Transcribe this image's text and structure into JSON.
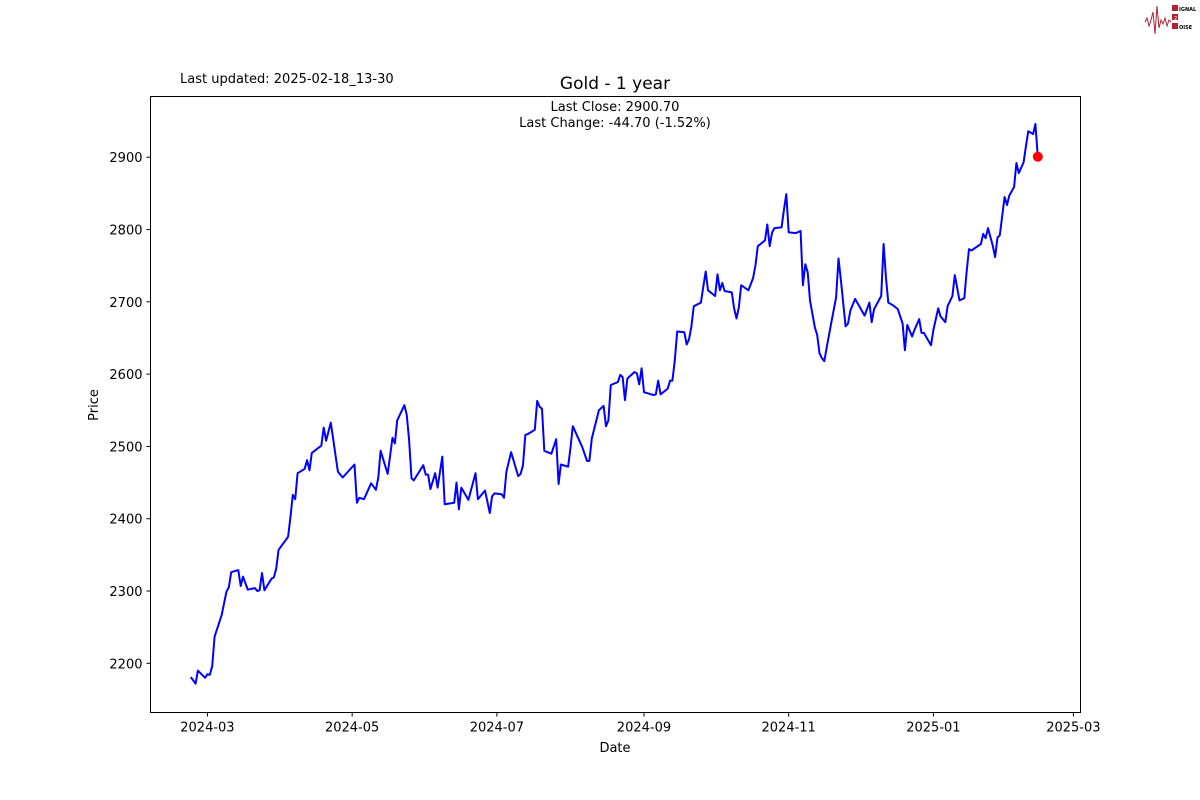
{
  "header": {
    "last_updated": "Last updated: 2025-02-18_13-30"
  },
  "logo": {
    "logo_text": [
      "SIGNAL",
      "2",
      "NOISE"
    ],
    "color": "#b22234"
  },
  "chart_data": {
    "type": "line",
    "title": "Gold - 1 year",
    "annotations": [
      "Last Close: 2900.70",
      "Last Change: -44.70 (-1.52%)"
    ],
    "xlabel": "Date",
    "ylabel": "Price",
    "xlim": [
      "2024-02-06",
      "2025-03-04"
    ],
    "ylim": [
      2132,
      2984
    ],
    "x_ticks": [
      "2024-03",
      "2024-05",
      "2024-07",
      "2024-09",
      "2024-11",
      "2025-01",
      "2025-03"
    ],
    "y_ticks": [
      2200,
      2300,
      2400,
      2500,
      2600,
      2700,
      2800,
      2900
    ],
    "grid": false,
    "line_color": "#0000ff",
    "marker_color": "#ff0000",
    "last_point": [
      "2025-02-14",
      2900.7
    ],
    "points": [
      [
        "2024-02-23",
        2181
      ],
      [
        "2024-02-25",
        2172
      ],
      [
        "2024-02-26",
        2190
      ],
      [
        "2024-02-29",
        2180
      ],
      [
        "2024-03-01",
        2185
      ],
      [
        "2024-03-02",
        2184
      ],
      [
        "2024-03-03",
        2196
      ],
      [
        "2024-03-04",
        2237
      ],
      [
        "2024-03-07",
        2267
      ],
      [
        "2024-03-09",
        2299
      ],
      [
        "2024-03-10",
        2305
      ],
      [
        "2024-03-11",
        2326
      ],
      [
        "2024-03-14",
        2329
      ],
      [
        "2024-03-15",
        2307
      ],
      [
        "2024-03-16",
        2320
      ],
      [
        "2024-03-18",
        2302
      ],
      [
        "2024-03-21",
        2304
      ],
      [
        "2024-03-22",
        2300
      ],
      [
        "2024-03-23",
        2301
      ],
      [
        "2024-03-24",
        2325
      ],
      [
        "2024-03-25",
        2301
      ],
      [
        "2024-03-28",
        2317
      ],
      [
        "2024-03-29",
        2319
      ],
      [
        "2024-03-30",
        2331
      ],
      [
        "2024-03-31",
        2357
      ],
      [
        "2024-04-04",
        2375
      ],
      [
        "2024-04-05",
        2403
      ],
      [
        "2024-04-06",
        2433
      ],
      [
        "2024-04-07",
        2427
      ],
      [
        "2024-04-08",
        2463
      ],
      [
        "2024-04-11",
        2469
      ],
      [
        "2024-04-12",
        2481
      ],
      [
        "2024-04-13",
        2467
      ],
      [
        "2024-04-14",
        2491
      ],
      [
        "2024-04-18",
        2501
      ],
      [
        "2024-04-19",
        2526
      ],
      [
        "2024-04-20",
        2508
      ],
      [
        "2024-04-22",
        2533
      ],
      [
        "2024-04-25",
        2465
      ],
      [
        "2024-04-27",
        2457
      ],
      [
        "2024-05-02",
        2475
      ],
      [
        "2024-05-03",
        2422
      ],
      [
        "2024-05-04",
        2429
      ],
      [
        "2024-05-06",
        2427
      ],
      [
        "2024-05-09",
        2449
      ],
      [
        "2024-05-11",
        2440
      ],
      [
        "2024-05-12",
        2457
      ],
      [
        "2024-05-13",
        2494
      ],
      [
        "2024-05-16",
        2462
      ],
      [
        "2024-05-18",
        2512
      ],
      [
        "2024-05-19",
        2504
      ],
      [
        "2024-05-20",
        2536
      ],
      [
        "2024-05-23",
        2557
      ],
      [
        "2024-05-24",
        2544
      ],
      [
        "2024-05-25",
        2509
      ],
      [
        "2024-05-26",
        2456
      ],
      [
        "2024-05-27",
        2453
      ],
      [
        "2024-05-31",
        2474
      ],
      [
        "2024-06-01",
        2461
      ],
      [
        "2024-06-02",
        2461
      ],
      [
        "2024-06-03",
        2441
      ],
      [
        "2024-06-05",
        2463
      ],
      [
        "2024-06-06",
        2443
      ],
      [
        "2024-06-08",
        2486
      ],
      [
        "2024-06-09",
        2420
      ],
      [
        "2024-06-13",
        2422
      ],
      [
        "2024-06-14",
        2450
      ],
      [
        "2024-06-15",
        2413
      ],
      [
        "2024-06-16",
        2443
      ],
      [
        "2024-06-19",
        2426
      ],
      [
        "2024-06-22",
        2463
      ],
      [
        "2024-06-23",
        2427
      ],
      [
        "2024-06-26",
        2439
      ],
      [
        "2024-06-28",
        2408
      ],
      [
        "2024-06-29",
        2431
      ],
      [
        "2024-06-30",
        2435
      ],
      [
        "2024-07-03",
        2434
      ],
      [
        "2024-07-04",
        2429
      ],
      [
        "2024-07-05",
        2465
      ],
      [
        "2024-07-07",
        2492
      ],
      [
        "2024-07-10",
        2459
      ],
      [
        "2024-07-11",
        2462
      ],
      [
        "2024-07-12",
        2474
      ],
      [
        "2024-07-13",
        2516
      ],
      [
        "2024-07-14",
        2517
      ],
      [
        "2024-07-17",
        2523
      ],
      [
        "2024-07-18",
        2563
      ],
      [
        "2024-07-19",
        2555
      ],
      [
        "2024-07-20",
        2552
      ],
      [
        "2024-07-21",
        2494
      ],
      [
        "2024-07-24",
        2490
      ],
      [
        "2024-07-26",
        2510
      ],
      [
        "2024-07-27",
        2448
      ],
      [
        "2024-07-28",
        2475
      ],
      [
        "2024-07-31",
        2472
      ],
      [
        "2024-08-01",
        2497
      ],
      [
        "2024-08-02",
        2528
      ],
      [
        "2024-08-06",
        2499
      ],
      [
        "2024-08-08",
        2480
      ],
      [
        "2024-08-09",
        2480
      ],
      [
        "2024-08-10",
        2511
      ],
      [
        "2024-08-13",
        2550
      ],
      [
        "2024-08-15",
        2556
      ],
      [
        "2024-08-16",
        2528
      ],
      [
        "2024-08-17",
        2536
      ],
      [
        "2024-08-18",
        2585
      ],
      [
        "2024-08-21",
        2589
      ],
      [
        "2024-08-22",
        2599
      ],
      [
        "2024-08-23",
        2596
      ],
      [
        "2024-08-24",
        2564
      ],
      [
        "2024-08-25",
        2594
      ],
      [
        "2024-08-28",
        2603
      ],
      [
        "2024-08-29",
        2601
      ],
      [
        "2024-08-30",
        2586
      ],
      [
        "2024-08-31",
        2608
      ],
      [
        "2024-09-01",
        2575
      ],
      [
        "2024-09-05",
        2571
      ],
      [
        "2024-09-06",
        2572
      ],
      [
        "2024-09-07",
        2591
      ],
      [
        "2024-09-08",
        2572
      ],
      [
        "2024-09-11",
        2580
      ],
      [
        "2024-09-12",
        2591
      ],
      [
        "2024-09-13",
        2591
      ],
      [
        "2024-09-14",
        2619
      ],
      [
        "2024-09-15",
        2659
      ],
      [
        "2024-09-18",
        2658
      ],
      [
        "2024-09-19",
        2641
      ],
      [
        "2024-09-20",
        2648
      ],
      [
        "2024-09-21",
        2666
      ],
      [
        "2024-09-22",
        2694
      ],
      [
        "2024-09-25",
        2699
      ],
      [
        "2024-09-26",
        2721
      ],
      [
        "2024-09-27",
        2742
      ],
      [
        "2024-09-28",
        2716
      ],
      [
        "2024-10-01",
        2708
      ],
      [
        "2024-10-02",
        2738
      ],
      [
        "2024-10-03",
        2716
      ],
      [
        "2024-10-04",
        2726
      ],
      [
        "2024-10-05",
        2715
      ],
      [
        "2024-10-08",
        2713
      ],
      [
        "2024-10-09",
        2691
      ],
      [
        "2024-10-10",
        2677
      ],
      [
        "2024-10-11",
        2693
      ],
      [
        "2024-10-12",
        2723
      ],
      [
        "2024-10-15",
        2716
      ],
      [
        "2024-10-17",
        2733
      ],
      [
        "2024-10-18",
        2751
      ],
      [
        "2024-10-19",
        2777
      ],
      [
        "2024-10-22",
        2785
      ],
      [
        "2024-10-23",
        2807
      ],
      [
        "2024-10-24",
        2777
      ],
      [
        "2024-10-25",
        2796
      ],
      [
        "2024-10-26",
        2802
      ],
      [
        "2024-10-29",
        2803
      ],
      [
        "2024-10-30",
        2827
      ],
      [
        "2024-10-31",
        2849
      ],
      [
        "2024-11-01",
        2796
      ],
      [
        "2024-11-04",
        2795
      ],
      [
        "2024-11-06",
        2798
      ],
      [
        "2024-11-07",
        2723
      ],
      [
        "2024-11-08",
        2752
      ],
      [
        "2024-11-09",
        2741
      ],
      [
        "2024-11-10",
        2702
      ],
      [
        "2024-11-12",
        2665
      ],
      [
        "2024-11-13",
        2654
      ],
      [
        "2024-11-14",
        2629
      ],
      [
        "2024-11-15",
        2622
      ],
      [
        "2024-11-16",
        2618
      ],
      [
        "2024-11-17",
        2636
      ],
      [
        "2024-11-19",
        2672
      ],
      [
        "2024-11-21",
        2706
      ],
      [
        "2024-11-22",
        2760
      ],
      [
        "2024-11-23",
        2730
      ],
      [
        "2024-11-25",
        2666
      ],
      [
        "2024-11-26",
        2670
      ],
      [
        "2024-11-27",
        2688
      ],
      [
        "2024-11-29",
        2704
      ],
      [
        "2024-12-03",
        2681
      ],
      [
        "2024-12-05",
        2699
      ],
      [
        "2024-12-06",
        2672
      ],
      [
        "2024-12-07",
        2690
      ],
      [
        "2024-12-10",
        2708
      ],
      [
        "2024-12-11",
        2780
      ],
      [
        "2024-12-12",
        2733
      ],
      [
        "2024-12-13",
        2699
      ],
      [
        "2024-12-15",
        2695
      ],
      [
        "2024-12-17",
        2690
      ],
      [
        "2024-12-19",
        2670
      ],
      [
        "2024-12-20",
        2633
      ],
      [
        "2024-12-21",
        2668
      ],
      [
        "2024-12-23",
        2652
      ],
      [
        "2024-12-24",
        2661
      ],
      [
        "2024-12-26",
        2676
      ],
      [
        "2024-12-27",
        2657
      ],
      [
        "2024-12-28",
        2657
      ],
      [
        "2024-12-31",
        2640
      ],
      [
        "2025-01-01",
        2661
      ],
      [
        "2025-01-03",
        2691
      ],
      [
        "2025-01-04",
        2680
      ],
      [
        "2025-01-06",
        2672
      ],
      [
        "2025-01-07",
        2694
      ],
      [
        "2025-01-09",
        2708
      ],
      [
        "2025-01-10",
        2737
      ],
      [
        "2025-01-12",
        2702
      ],
      [
        "2025-01-14",
        2705
      ],
      [
        "2025-01-15",
        2741
      ],
      [
        "2025-01-16",
        2773
      ],
      [
        "2025-01-17",
        2771
      ],
      [
        "2025-01-21",
        2780
      ],
      [
        "2025-01-22",
        2794
      ],
      [
        "2025-01-23",
        2788
      ],
      [
        "2025-01-24",
        2802
      ],
      [
        "2025-01-26",
        2778
      ],
      [
        "2025-01-27",
        2762
      ],
      [
        "2025-01-28",
        2789
      ],
      [
        "2025-01-29",
        2792
      ],
      [
        "2025-01-31",
        2845
      ],
      [
        "2025-02-01",
        2834
      ],
      [
        "2025-02-02",
        2847
      ],
      [
        "2025-02-04",
        2859
      ],
      [
        "2025-02-05",
        2892
      ],
      [
        "2025-02-06",
        2878
      ],
      [
        "2025-02-08",
        2893
      ],
      [
        "2025-02-09",
        2915
      ],
      [
        "2025-02-10",
        2936
      ],
      [
        "2025-02-12",
        2932
      ],
      [
        "2025-02-13",
        2946
      ],
      [
        "2025-02-14",
        2900.7
      ]
    ]
  }
}
